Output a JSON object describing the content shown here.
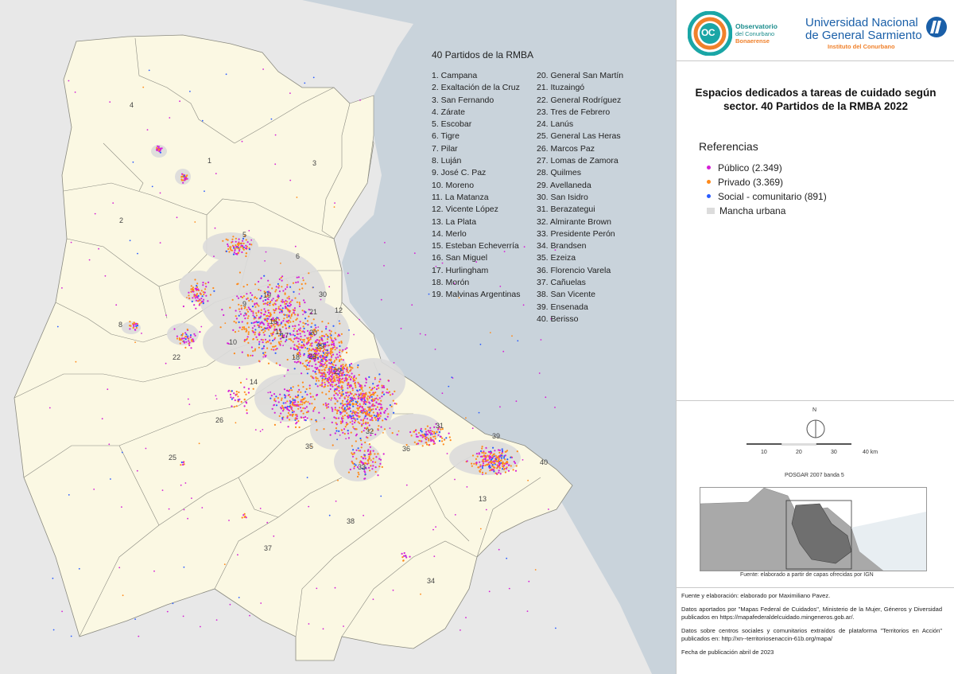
{
  "list": {
    "title": "40 Partidos  de la RMBA",
    "col1": [
      "1. Campana",
      "2. Exaltación de la Cruz",
      "3. San Fernando",
      "4. Zárate",
      "5. Escobar",
      "6. Tigre",
      "7. Pilar",
      "8. Luján",
      "9. José C. Paz",
      "10. Moreno",
      "11. La Matanza",
      "12. Vicente López",
      "13. La Plata",
      "14. Merlo",
      "15. Esteban Echeverría",
      "16. San Miguel",
      "17. Hurlingham",
      "18. Morón",
      "19. Malvinas Argentinas"
    ],
    "col2": [
      "20. General San Martín",
      "21. Ituzaingó",
      "22. General Rodríguez",
      "23. Tres de Febrero",
      "24. Lanús",
      "25. General Las Heras",
      "26. Marcos Paz",
      "27. Lomas de Zamora",
      "28. Quilmes",
      "29. Avellaneda",
      "30. San Isidro",
      "31. Berazategui",
      "32. Almirante Brown",
      "33. Presidente Perón",
      "34. Brandsen",
      "35. Ezeiza",
      "36. Florencio Varela",
      "37. Cañuelas",
      "38. San Vicente",
      "39. Ensenada",
      "40. Berisso"
    ]
  },
  "map_numbers": [
    "4",
    "1",
    "3",
    "2",
    "5",
    "6",
    "8",
    "22",
    "26",
    "25",
    "37",
    "38",
    "34",
    "13",
    "40",
    "39",
    "36",
    "31",
    "33",
    "35",
    "32",
    "10",
    "11",
    "14",
    "9",
    "19",
    "16",
    "20",
    "21",
    "17",
    "18",
    "23",
    "27",
    "29",
    "30",
    "12"
  ],
  "logos": {
    "oc_initials": "OC",
    "oc_line1": "Observatorio",
    "oc_line2": "del Conurbano",
    "oc_line3": "Bonaerense",
    "ungs_line1": "Universidad Nacional",
    "ungs_line2": "de General Sarmiento",
    "ungs_line3": "Instituto del Conurbano"
  },
  "title": "Espacios dedicados a tareas de cuidado según sector. 40 Partidos de la RMBA 2022",
  "references": {
    "title": "Referencias",
    "items": [
      {
        "label": "Público (2.349)",
        "color": "#d61fd6",
        "kind": "dot"
      },
      {
        "label": "Privado (3.369)",
        "color": "#ff8a1a",
        "kind": "dot"
      },
      {
        "label": "Social - comunitario (891)",
        "color": "#2a5cff",
        "kind": "dot"
      },
      {
        "label": "Mancha urbana",
        "color": "#dcdcdc",
        "kind": "swatch"
      }
    ]
  },
  "colors": {
    "territory": "#fbf8e3",
    "water": "#c9d3db",
    "background": "#e8e8e8",
    "boundary": "#8a8a80",
    "oc_teal": "#1aa6a6",
    "oc_orange": "#f0812b",
    "ungs_blue": "#1a5fa8"
  },
  "scale": {
    "north": "N",
    "ticks": [
      "10",
      "20",
      "30",
      "40 km"
    ],
    "projection": "POSGAR 2007 banda 5"
  },
  "inset_caption": "Fuente: elaborado a partir de capas ofrecidas por IGN",
  "credits": {
    "p1": "Fuente y elaboración: elaborado por Maximiliano Pavez.",
    "p2": "Datos aportados por \"Mapas Federal de Cuidados\", Ministerio de la Mujer, Géneros y Diversidad publicados en https://mapafederaldelcuidado.mingeneros.gob.ar/.",
    "p3": "Datos sobre centros sociales y comunitarios extraídos de plataforma \"Territorios en Acción\" publicados en: http://xn--territoriosenaccin-61b.org/mapa/",
    "p4": "Fecha de publicación abril de 2023"
  }
}
